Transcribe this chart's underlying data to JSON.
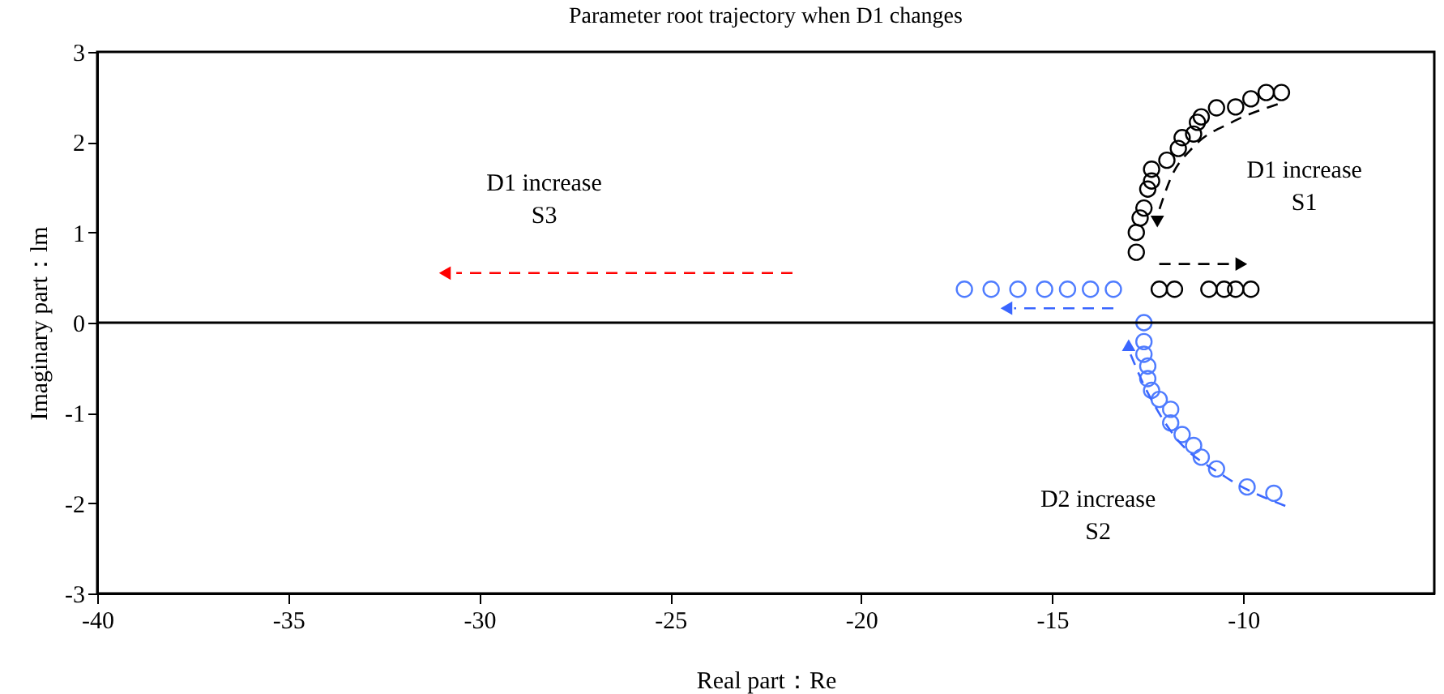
{
  "chart_data": {
    "type": "scatter",
    "title": "Parameter root trajectory when D1 changes",
    "xlabel": "Real part：Re",
    "ylabel": "Imaginary part：lm",
    "xlim": [
      -40,
      -5
    ],
    "xticks": [
      -40,
      -35,
      -30,
      -25,
      -20,
      -15,
      -10
    ],
    "ylim": [
      -3,
      3
    ],
    "yticks": [
      -3,
      -2,
      -1,
      0,
      1,
      2,
      3
    ],
    "grid": false,
    "marker": "circle",
    "ref_lines": [
      {
        "axis": "y",
        "value": 0,
        "color": "#000000"
      }
    ],
    "annotations": [
      "D1 increase\nS1",
      "D1 increase\nS3",
      "D2 increase\nS2"
    ],
    "series": [
      {
        "color": "#000000",
        "x": [
          -12.8,
          -12.8,
          -12.7,
          -12.6,
          -12.5,
          -12.4,
          -12.4,
          -12.0,
          -11.7,
          -11.6,
          -11.3,
          -11.2,
          -11.1,
          -10.7,
          -10.2,
          -9.8,
          -9.4,
          -9.0,
          -12.2,
          -11.8,
          -10.9,
          -10.5,
          -10.2,
          -9.8
        ],
        "values": [
          0.78,
          1.0,
          1.16,
          1.27,
          1.48,
          1.57,
          1.7,
          1.8,
          1.93,
          2.05,
          2.09,
          2.22,
          2.28,
          2.38,
          2.39,
          2.48,
          2.55,
          2.55,
          0.37,
          0.37,
          0.37,
          0.37,
          0.37,
          0.37
        ]
      },
      {
        "color": "#4f7cff",
        "x": [
          -17.3,
          -16.6,
          -15.9,
          -15.2,
          -14.6,
          -14.0,
          -13.4
        ],
        "values": [
          0.37,
          0.37,
          0.37,
          0.37,
          0.37,
          0.37,
          0.37
        ]
      },
      {
        "color": "#4f7cff",
        "x": [
          -12.6,
          -12.6,
          -12.6,
          -12.5,
          -12.5,
          -12.4,
          -12.2,
          -11.9,
          -11.9,
          -11.6,
          -11.3,
          -11.1,
          -10.7,
          -9.9,
          -9.2
        ],
        "values": [
          0,
          -0.21,
          -0.35,
          -0.48,
          -0.62,
          -0.75,
          -0.85,
          -0.96,
          -1.11,
          -1.24,
          -1.36,
          -1.49,
          -1.62,
          -1.82,
          -1.89
        ]
      }
    ]
  }
}
